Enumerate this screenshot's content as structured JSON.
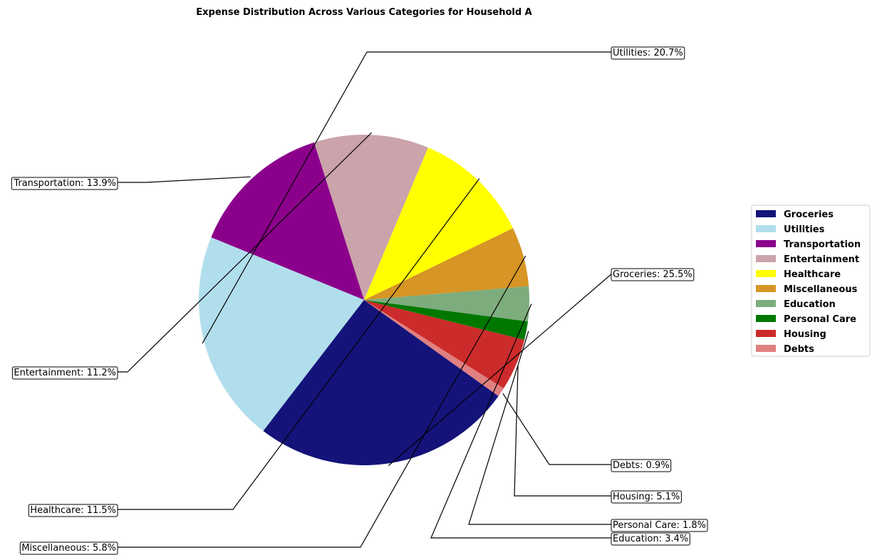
{
  "chart_data": {
    "type": "pie",
    "title": "Expense Distribution Across Various Categories for Household A",
    "legend_position": "right",
    "categories": [
      "Groceries",
      "Utilities",
      "Transportation",
      "Entertainment",
      "Healthcare",
      "Miscellaneous",
      "Education",
      "Personal Care",
      "Housing",
      "Debts"
    ],
    "values": [
      25.5,
      20.7,
      13.9,
      11.2,
      11.5,
      5.8,
      3.4,
      1.8,
      5.1,
      0.9
    ],
    "colors": [
      "#13137a",
      "#b1deec",
      "#8b008b",
      "#cba3aa",
      "#ffff00",
      "#d69524",
      "#7dac7d",
      "#007800",
      "#cc2b2b",
      "#e08080"
    ],
    "slice_order": [
      "Debts",
      "Housing",
      "Personal Care",
      "Education",
      "Miscellaneous",
      "Healthcare",
      "Entertainment",
      "Transportation",
      "Utilities",
      "Groceries"
    ],
    "labels": [
      "Groceries: 25.5%",
      "Utilities: 20.7%",
      "Transportation: 13.9%",
      "Entertainment: 11.2%",
      "Healthcare: 11.5%",
      "Miscellaneous: 5.8%",
      "Education: 3.4%",
      "Personal Care: 1.8%",
      "Housing: 5.1%",
      "Debts: 0.9%"
    ]
  }
}
